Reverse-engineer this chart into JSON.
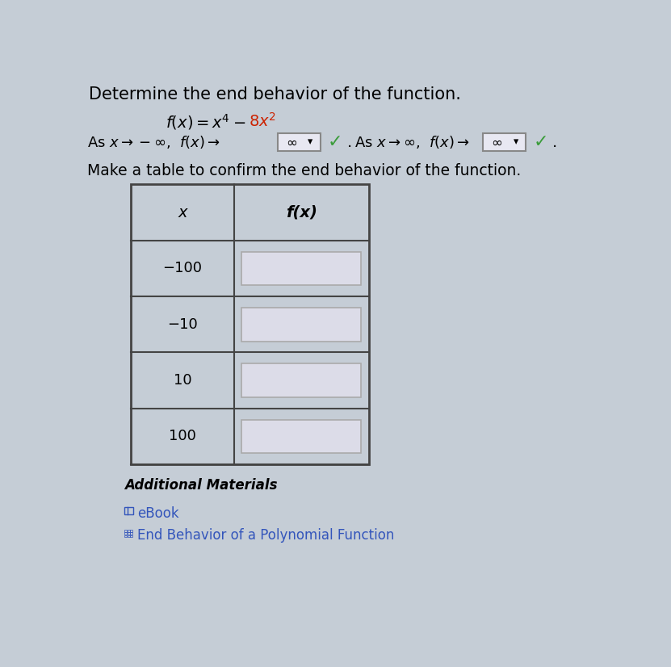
{
  "title": "Determine the end behavior of the function.",
  "function_latex": "$f(x) = x^4 - 8x^2$",
  "checkmark_color": "#3a9c3a",
  "table_x_values": [
    "−100",
    "−10",
    "10",
    "100"
  ],
  "table_header_x": "x",
  "table_header_fx": "f(x)",
  "input_box_color": "#dcdce8",
  "input_box_border": "#aaaaaa",
  "table_border_color": "#444444",
  "bg_color": "#c5cdd6",
  "additional_materials_text": "Additional Materials",
  "ebook_text": "eBook",
  "end_behavior_text": "End Behavior of a Polynomial Function",
  "link_color": "#3355bb",
  "dropdown_box_color": "#e8e8f2",
  "dropdown_border_color": "#888888",
  "make_table_text": "Make a table to confirm the end behavior of the function.",
  "header_bg": "#c5cdd6",
  "row_bg": "#c5cdd6"
}
